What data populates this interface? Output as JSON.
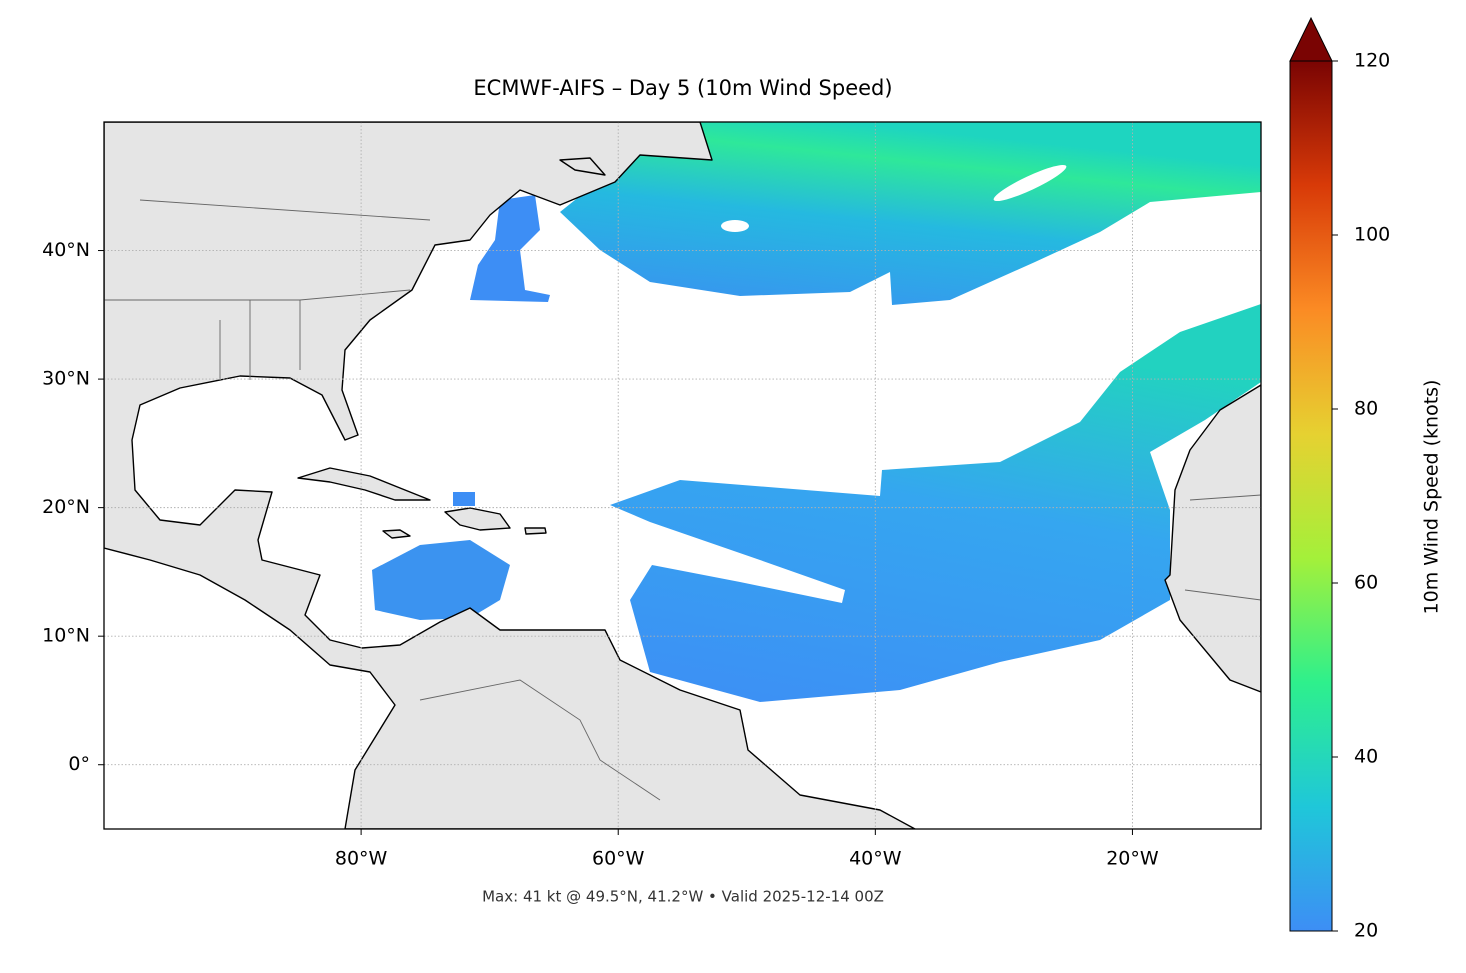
{
  "title": "ECMWF-AIFS – Day 5 (10m Wind Speed)",
  "caption": "Max: 41 kt @ 49.5°N, 41.2°W • Valid 2025-12-14 00Z",
  "map": {
    "xlim": [
      -100,
      -10
    ],
    "ylim": [
      -5,
      50
    ],
    "grid": true,
    "xticks": [
      {
        "value": -80,
        "label": "80°W"
      },
      {
        "value": -60,
        "label": "60°W"
      },
      {
        "value": -40,
        "label": "40°W"
      },
      {
        "value": -20,
        "label": "20°W"
      }
    ],
    "yticks": [
      {
        "value": 0,
        "label": "0°"
      },
      {
        "value": 10,
        "label": "10°N"
      },
      {
        "value": 20,
        "label": "20°N"
      },
      {
        "value": 30,
        "label": "30°N"
      },
      {
        "value": 40,
        "label": "40°N"
      }
    ]
  },
  "colorbar": {
    "label": "10m Wind Speed (knots)",
    "lim": [
      20,
      120
    ],
    "ticks": [
      20,
      40,
      60,
      80,
      100,
      120
    ],
    "colors": [
      "#3d8ef5",
      "#1fc7d9",
      "#2ef08c",
      "#a4f03a",
      "#e6d131",
      "#fb8b24",
      "#d83a08",
      "#7a0403"
    ]
  }
}
